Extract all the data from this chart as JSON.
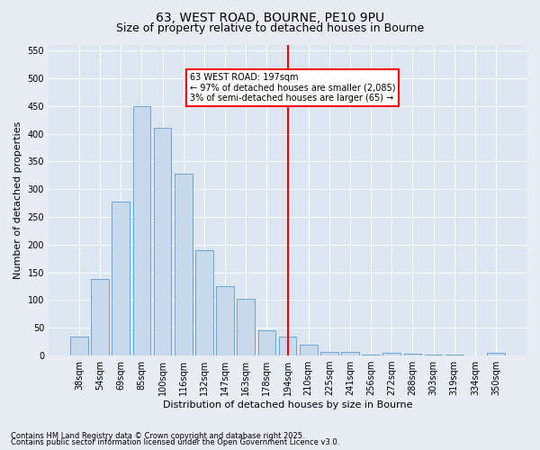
{
  "title": "63, WEST ROAD, BOURNE, PE10 9PU",
  "subtitle": "Size of property relative to detached houses in Bourne",
  "xlabel": "Distribution of detached houses by size in Bourne",
  "ylabel": "Number of detached properties",
  "footnote1": "Contains HM Land Registry data © Crown copyright and database right 2025.",
  "footnote2": "Contains public sector information licensed under the Open Government Licence v3.0.",
  "bar_labels": [
    "38sqm",
    "54sqm",
    "69sqm",
    "85sqm",
    "100sqm",
    "116sqm",
    "132sqm",
    "147sqm",
    "163sqm",
    "178sqm",
    "194sqm",
    "210sqm",
    "225sqm",
    "241sqm",
    "256sqm",
    "272sqm",
    "288sqm",
    "303sqm",
    "319sqm",
    "334sqm",
    "350sqm"
  ],
  "bar_values": [
    35,
    138,
    278,
    450,
    410,
    328,
    190,
    125,
    103,
    45,
    35,
    20,
    6,
    7,
    2,
    5,
    3,
    2,
    1,
    0,
    5
  ],
  "bar_color": "#c9d9ec",
  "bar_edge_color": "#5b9bd5",
  "vline_x_index": 10,
  "vline_color": "red",
  "annotation_text": "63 WEST ROAD: 197sqm\n← 97% of detached houses are smaller (2,085)\n3% of semi-detached houses are larger (65) →",
  "annotation_box_color": "white",
  "annotation_box_edge_color": "red",
  "ylim": [
    0,
    560
  ],
  "yticks": [
    0,
    50,
    100,
    150,
    200,
    250,
    300,
    350,
    400,
    450,
    500,
    550
  ],
  "bg_color": "#e8edf4",
  "plot_bg_color": "#dce6f1",
  "title_fontsize": 10,
  "subtitle_fontsize": 9,
  "label_fontsize": 8,
  "tick_fontsize": 7,
  "footnote_fontsize": 6
}
